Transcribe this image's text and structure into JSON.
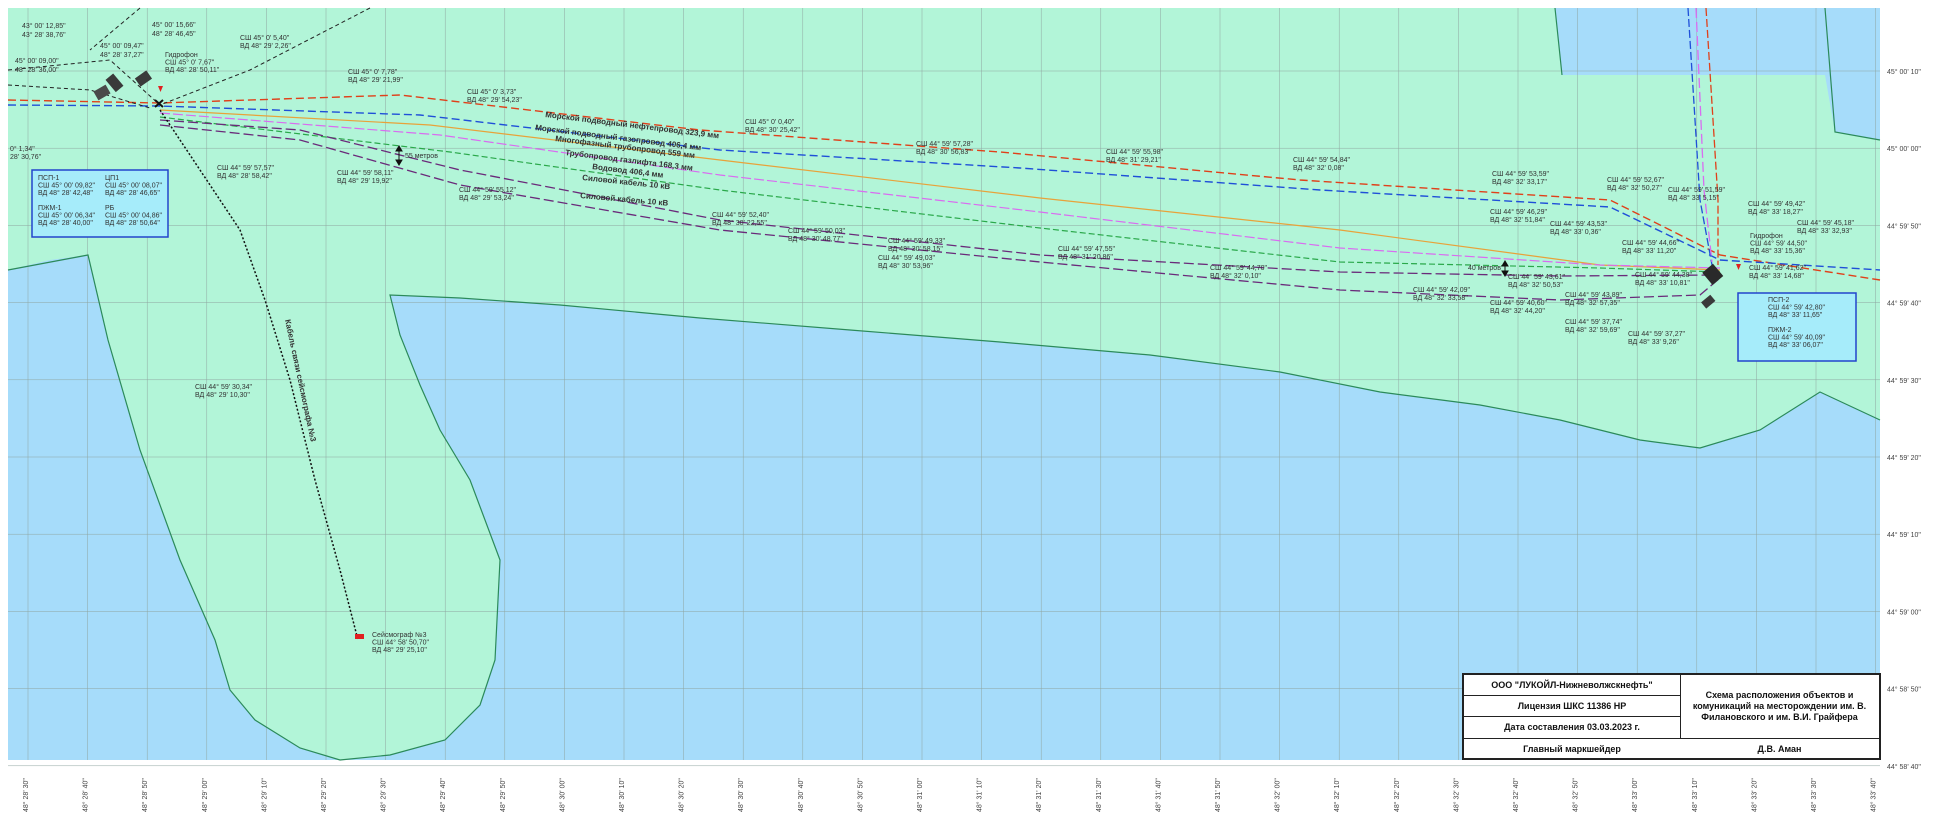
{
  "colors": {
    "water": "#a6dcfa",
    "land": "#b2f5d8",
    "shore": "#2b8a5a",
    "grid": "#8fa6a0",
    "oil": "#e0401a",
    "gas": "#1f4fd8",
    "multiphase": "#e8a23a",
    "gaslift": "#d96cf0",
    "water_line": "#2aa84a",
    "cable": "#6a2a7a",
    "seismo_cable": "#111111",
    "box": "#2244cc"
  },
  "right_ticks": [
    "45° 00' 10\"",
    "45° 00' 00\"",
    "44° 59' 50\"",
    "44° 59' 40\"",
    "44° 59' 30\"",
    "44° 59' 20\"",
    "44° 59' 10\"",
    "44° 59' 00\"",
    "44° 58' 50\"",
    "44° 58' 40\""
  ],
  "bottom_ticks": [
    "48° 28' 30\"",
    "48° 28' 40\"",
    "48° 28' 50\"",
    "48° 29' 00\"",
    "48° 29' 10\"",
    "48° 29' 20\"",
    "48° 29' 30\"",
    "48° 29' 40\"",
    "48° 29' 50\"",
    "48° 30' 00\"",
    "48° 30' 10\"",
    "48° 30' 20\"",
    "48° 30' 30\"",
    "48° 30' 40\"",
    "48° 30' 50\"",
    "48° 31' 00\"",
    "48° 31' 10\"",
    "48° 31' 20\"",
    "48° 31' 30\"",
    "48° 31' 40\"",
    "48° 31' 50\"",
    "48° 32' 00\"",
    "48° 32' 10\"",
    "48° 32' 20\"",
    "48° 32' 30\"",
    "48° 32' 40\"",
    "48° 32' 50\"",
    "48° 33' 00\"",
    "48° 33' 10\"",
    "48° 33' 20\"",
    "48° 33' 30\"",
    "48° 33' 40\""
  ],
  "pipelines": [
    {
      "key": "oil",
      "label": "Морской подводный нефтепровод 323,9 мм"
    },
    {
      "key": "gas",
      "label": "Морской подводный газопровод 406,4 мм"
    },
    {
      "key": "multiphase",
      "label": "Многофазный трубопровод 559 мм"
    },
    {
      "key": "gaslift",
      "label": "Трубопровод газлифта 168,3 мм"
    },
    {
      "key": "water_line",
      "label": "Водовод 406,4 мм"
    },
    {
      "key": "cable1",
      "label": "Силовой кабель 10 кВ"
    },
    {
      "key": "cable2",
      "label": "Силовой кабель 10 кВ"
    }
  ],
  "seismo_cable_label": "Кабель связи сейсмографа №3",
  "objects": {
    "pspl1": {
      "lines": [
        "ПСП-1",
        "СШ 45° 00' 09,82\"",
        "ВД 48° 28' 42,48\"",
        "",
        "ПЖМ-1",
        "СШ 45° 00' 06,34\"",
        "ВД 48° 28' 40,00\""
      ]
    },
    "tsp1": {
      "lines": [
        "ЦП1",
        "СШ 45° 00' 08,07\"",
        "ВД 48° 28' 46,65\"",
        "",
        "РБ",
        "СШ 45° 00' 04,86\"",
        "ВД 48° 28' 50,64\""
      ]
    },
    "pspl2": {
      "lines": [
        "ПСП-2",
        "СШ 44° 59' 42,80\"",
        "ВД 48° 33' 11,65\"",
        "",
        "ПЖМ-2",
        "СШ 44° 59' 40,09\"",
        "ВД 48° 33' 06,07\""
      ]
    },
    "seismo": {
      "lines": [
        "Сейсмограф №3",
        "СШ 44° 58' 50,70\"",
        "ВД 48° 29' 25,10\""
      ]
    },
    "hydrophone1": {
      "lines": [
        "Гидрофон",
        "СШ 45° 0' 7,67\"",
        "ВД 48° 28' 50,11\""
      ]
    },
    "hydrophone2": {
      "lines": [
        "Гидрофон",
        "СШ 44° 59' 44,50\"",
        "ВД 48° 33' 15,36\""
      ]
    }
  },
  "corner_coords": [
    [
      "43° 00' 12,85\"",
      "43° 28' 38,76\""
    ],
    [
      "45° 00' 15,66\"",
      "48° 28' 46,45\""
    ],
    [
      "45° 00' 09,47\"",
      "48° 28' 37,27\""
    ],
    [
      "45° 00' 09,00\"",
      "48° 28' 36,00\""
    ]
  ],
  "point_labels": [
    [
      "СШ 45° 0' 5,40\"",
      "ВД 48° 29' 2,26\""
    ],
    [
      "СШ 45° 0' 7,78\"",
      "ВД 48° 29' 21,99\""
    ],
    [
      "СШ 45° 0' 3,73\"",
      "ВД 48° 29' 54,23\""
    ],
    [
      "СШ 45° 0' 0,40\"",
      "ВД 48° 30' 25,42\""
    ],
    [
      "СШ 44° 59' 57,28\"",
      "ВД 48° 30' 56,83\""
    ],
    [
      "СШ 44° 59' 55,98\"",
      "ВД 48° 31' 29,21\""
    ],
    [
      "СШ 44° 59' 54,84\"",
      "ВД 48° 32' 0,08\""
    ],
    [
      "СШ 44° 59' 53,59\"",
      "ВД 48° 32' 33,17\""
    ],
    [
      "СШ 44° 59' 52,67\"",
      "ВД 48° 32' 50,27\""
    ],
    [
      "СШ 44° 59' 51,59\"",
      "ВД 48° 33' 5,15\""
    ],
    [
      "СШ 44° 59' 49,42\"",
      "ВД 48° 33' 18,27\""
    ],
    [
      "СШ 44° 59' 45,18\"",
      "ВД 48° 33' 32,93\""
    ],
    [
      "СШ 44° 59' 57,57\"",
      "ВД 48° 28' 58,42\""
    ],
    [
      "СШ 44° 59' 58,11\"",
      "ВД 48° 29' 19,92\""
    ],
    [
      "СШ 44° 59' 55,12\"",
      "ВД 48° 29' 53,24\""
    ],
    [
      "СШ 44° 59' 52,40\"",
      "ВД 48° 30' 22,55\""
    ],
    [
      "СШ 44° 59' 50,03\"",
      "ВД 48° 30' 48,77\""
    ],
    [
      "СШ 44° 59' 49,33\"",
      "ВД 48° 30' 58,15\""
    ],
    [
      "СШ 44° 59' 49,03\"",
      "ВД 48° 30' 53,96\""
    ],
    [
      "СШ 44° 59' 47,55\"",
      "ВД 48° 31' 20,86\""
    ],
    [
      "СШ 44° 59' 44,70\"",
      "ВД 48° 32' 0,10\""
    ],
    [
      "СШ 44° 59' 42,09\"",
      "ВД 48° 32' 33,58\""
    ],
    [
      "СШ 44° 59' 46,29\"",
      "ВД 48° 32' 51,84\""
    ],
    [
      "СШ 44° 59' 43,53\"",
      "ВД 48° 33' 0,36\""
    ],
    [
      "СШ 44° 59' 44,66\"",
      "ВД 48° 33' 11,20\""
    ],
    [
      "СШ 44° 59' 41,62\"",
      "ВД 48° 33' 14,68\""
    ],
    [
      "СШ 44° 59' 43,61\"",
      "ВД 48° 32' 50,53\""
    ],
    [
      "СШ 44° 59' 43,89\"",
      "ВД 48° 32' 57,35\""
    ],
    [
      "СШ 44° 59' 40,60\"",
      "ВД 48° 32' 44,20\""
    ],
    [
      "СШ 44° 59' 37,74\"",
      "ВД 48° 32' 59,69\""
    ],
    [
      "СШ 44° 59' 44,38\"",
      "ВД 48° 33' 10,81\""
    ],
    [
      "СШ 44° 59' 37,27\"",
      "ВД 48° 33' 9,26\""
    ],
    [
      "СШ 44° 59' 30,34\"",
      "ВД 48° 29' 10,30\""
    ],
    [
      "0° 1,34\"",
      "28' 30,76\""
    ]
  ],
  "distance_labels": [
    "55 метров",
    "40 метров"
  ],
  "titleblock": {
    "company": "ООО \"ЛУКОЙЛ-Нижневолжскнефть\"",
    "license": "Лицензия ШКС 11386 НР",
    "date": "Дата составления 03.03.2023 г.",
    "title": "Схема расположения объектов и комуникаций на месторождении им. В. Филановского и им. В.И. Грайфера",
    "role": "Главный маркшейдер",
    "name": "Д.В. Аман"
  }
}
